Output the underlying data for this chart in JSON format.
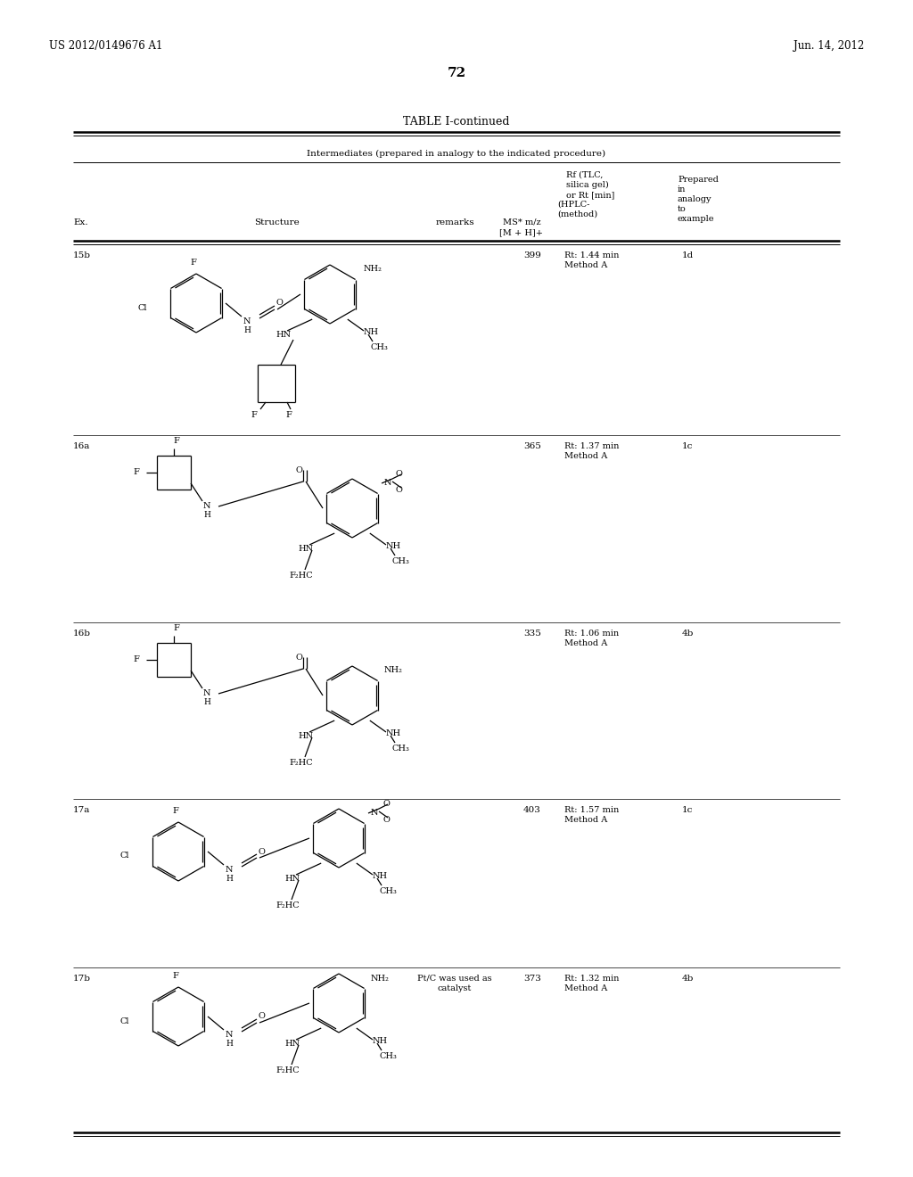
{
  "page_number": "72",
  "header_left": "US 2012/0149676 A1",
  "header_right": "Jun. 14, 2012",
  "table_title": "TABLE I-continued",
  "table_subtitle": "Intermediates (prepared in analogy to the indicated procedure)",
  "bg_color": "#ffffff",
  "text_color": "#000000",
  "line_color": "#000000",
  "rows": [
    {
      "ex": "15b",
      "ms": "399",
      "rf": "Rt: 1.44 min\nMethod A",
      "prepared": "1d",
      "remarks": ""
    },
    {
      "ex": "16a",
      "ms": "365",
      "rf": "Rt: 1.37 min\nMethod A",
      "prepared": "1c",
      "remarks": ""
    },
    {
      "ex": "16b",
      "ms": "335",
      "rf": "Rt: 1.06 min\nMethod A",
      "prepared": "4b",
      "remarks": ""
    },
    {
      "ex": "17a",
      "ms": "403",
      "rf": "Rt: 1.57 min\nMethod A",
      "prepared": "1c",
      "remarks": ""
    },
    {
      "ex": "17b",
      "ms": "373",
      "rf": "Rt: 1.32 min\nMethod A",
      "prepared": "4b",
      "remarks": "Pt/C was used as\ncatalyst"
    }
  ]
}
